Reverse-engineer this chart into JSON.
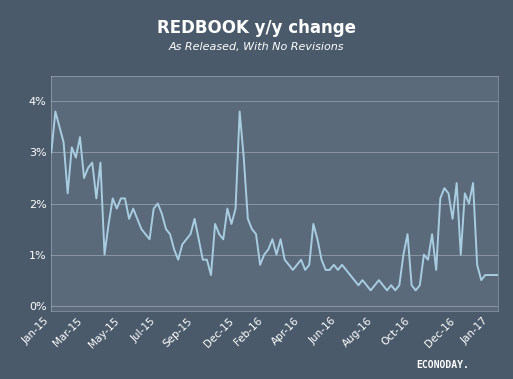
{
  "title": "REDBOOK y/y change",
  "subtitle": "As Released, With No Revisions",
  "bg_outer": "#4a5a6a",
  "bg_inner": "#5a6a7a",
  "line_color": "#a8cce0",
  "line_width": 1.4,
  "ylim": [
    -0.001,
    0.045
  ],
  "yticks": [
    0.0,
    0.01,
    0.02,
    0.03,
    0.04
  ],
  "ytick_labels": [
    "0%",
    "1%",
    "2%",
    "3%",
    "4%"
  ],
  "xtick_labels": [
    "Jan-15",
    "Mar-15",
    "May-15",
    "Jul-15",
    "Sep-15",
    "Dec-15",
    "Feb-16",
    "Apr-16",
    "Jun-16",
    "Aug-16",
    "Oct-16",
    "Dec-16",
    "Jan-17"
  ],
  "xtick_positions": [
    0,
    8,
    17,
    26,
    35,
    45,
    52,
    61,
    70,
    79,
    88,
    99,
    107
  ],
  "y_values": [
    0.03,
    0.038,
    0.035,
    0.032,
    0.022,
    0.031,
    0.029,
    0.033,
    0.025,
    0.027,
    0.028,
    0.021,
    0.028,
    0.01,
    0.016,
    0.021,
    0.019,
    0.021,
    0.021,
    0.017,
    0.019,
    0.017,
    0.015,
    0.014,
    0.013,
    0.019,
    0.02,
    0.018,
    0.015,
    0.014,
    0.011,
    0.009,
    0.012,
    0.013,
    0.014,
    0.017,
    0.013,
    0.009,
    0.009,
    0.006,
    0.016,
    0.014,
    0.013,
    0.019,
    0.016,
    0.019,
    0.038,
    0.029,
    0.017,
    0.015,
    0.014,
    0.008,
    0.01,
    0.011,
    0.013,
    0.01,
    0.013,
    0.009,
    0.008,
    0.007,
    0.008,
    0.009,
    0.007,
    0.008,
    0.016,
    0.013,
    0.009,
    0.007,
    0.007,
    0.008,
    0.007,
    0.008,
    0.007,
    0.006,
    0.005,
    0.004,
    0.005,
    0.004,
    0.003,
    0.004,
    0.005,
    0.004,
    0.003,
    0.004,
    0.003,
    0.004,
    0.01,
    0.014,
    0.004,
    0.003,
    0.004,
    0.01,
    0.009,
    0.014,
    0.007,
    0.021,
    0.023,
    0.022,
    0.017,
    0.024,
    0.01,
    0.022,
    0.02,
    0.024,
    0.008,
    0.005,
    0.006,
    0.006,
    0.006,
    0.006
  ]
}
